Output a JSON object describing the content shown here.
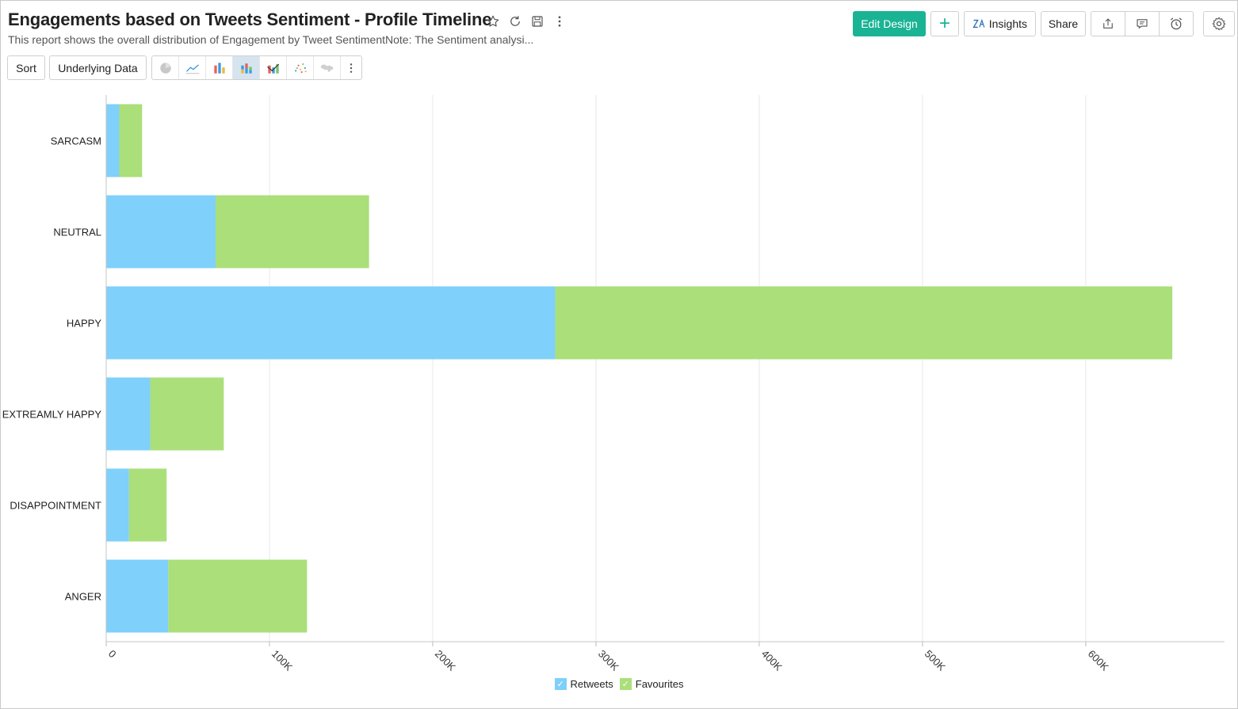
{
  "report": {
    "title": "Engagements based on Tweets Sentiment - Profile Timeline",
    "description": "This report shows the overall distribution of Engagement by Tweet SentimentNote: The Sentiment analysi..."
  },
  "title_icons": [
    "star-icon",
    "refresh-icon",
    "save-icon",
    "more-vertical-icon"
  ],
  "topbar": {
    "edit_design_label": "Edit Design",
    "add_label": "+",
    "insights_label": "Insights",
    "share_label": "Share",
    "icons": [
      "export-icon",
      "comment-icon",
      "alarm-icon",
      "gear-icon"
    ]
  },
  "toolbar": {
    "sort_label": "Sort",
    "underlying_data_label": "Underlying Data",
    "chart_types": [
      "pie-chart-icon",
      "line-chart-icon",
      "bar-chart-icon",
      "stacked-bar-chart-icon",
      "combination-chart-icon",
      "scatter-chart-icon",
      "map-chart-icon"
    ],
    "active_chart_type": "stacked-bar-chart-icon"
  },
  "colors": {
    "retweets": "#7fd0fa",
    "favourites": "#aadf7a",
    "primary": "#1ab394",
    "active_chart_type_bg": "#d6e4f0",
    "grid": "#e8e8e8"
  },
  "chart_data": {
    "type": "bar",
    "orientation": "horizontal",
    "stacked": true,
    "categories": [
      "SARCASM",
      "NEUTRAL",
      "HAPPY",
      "EXTREAMLY HAPPY",
      "DISAPPOINTMENT",
      "ANGER"
    ],
    "series": [
      {
        "name": "Retweets",
        "color": "#7fd0fa",
        "values": [
          8000,
          67000,
          275000,
          27000,
          14000,
          38000
        ]
      },
      {
        "name": "Favourites",
        "color": "#aadf7a",
        "values": [
          14000,
          94000,
          378000,
          45000,
          23000,
          85000
        ]
      }
    ],
    "x_ticks": [
      "0",
      "100K",
      "200K",
      "300K",
      "400K",
      "500K",
      "600K"
    ],
    "x_tick_values": [
      0,
      100000,
      200000,
      300000,
      400000,
      500000,
      600000
    ],
    "xlim": [
      0,
      685000
    ],
    "grid": true,
    "legend_position": "bottom-center"
  }
}
